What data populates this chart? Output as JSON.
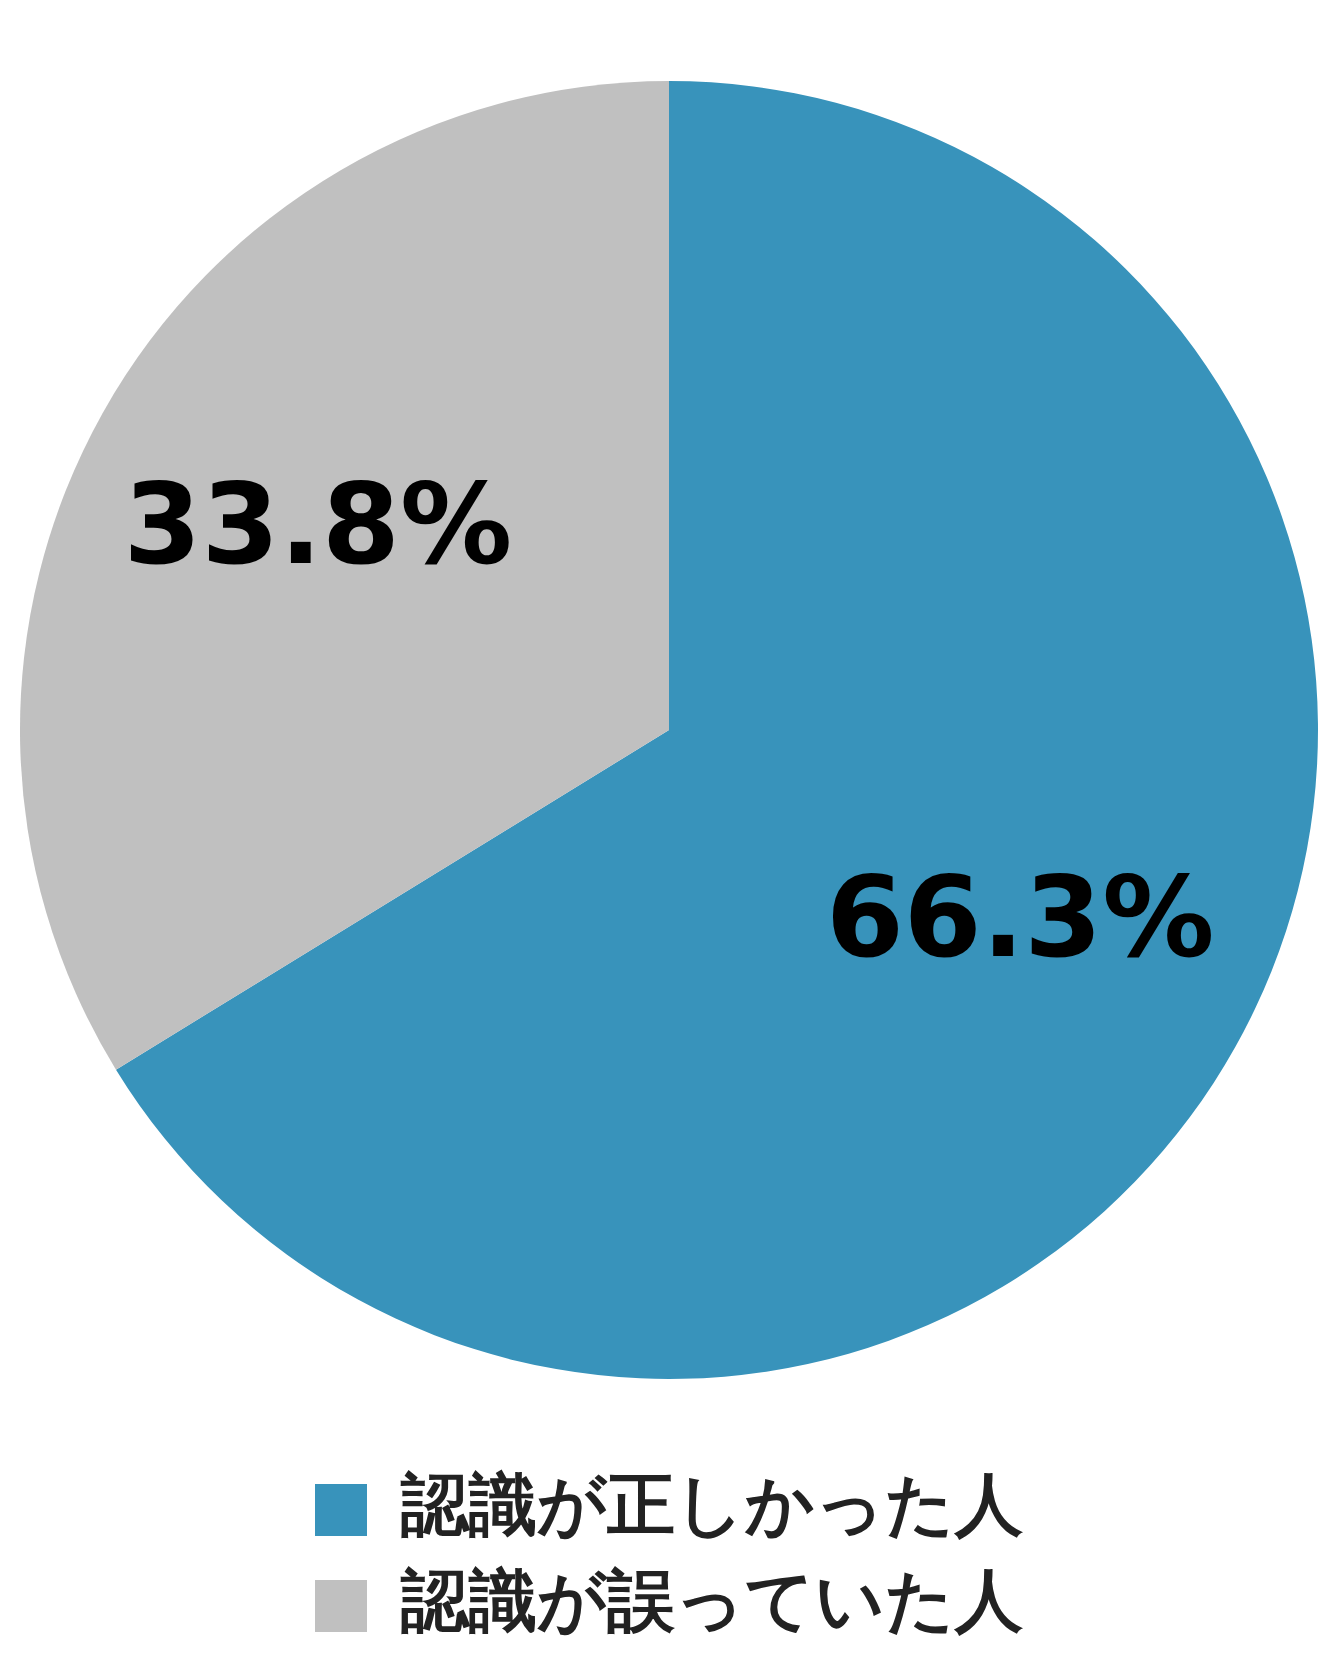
{
  "chart_data": {
    "type": "pie",
    "categories": [
      "認識が正しかった人",
      "認識が誤っていた人"
    ],
    "values": [
      66.3,
      33.8
    ],
    "colors": [
      "#3893bb",
      "#c0c0c0"
    ],
    "value_labels": [
      "66.3%",
      "33.8%"
    ],
    "legend": "bottom"
  }
}
